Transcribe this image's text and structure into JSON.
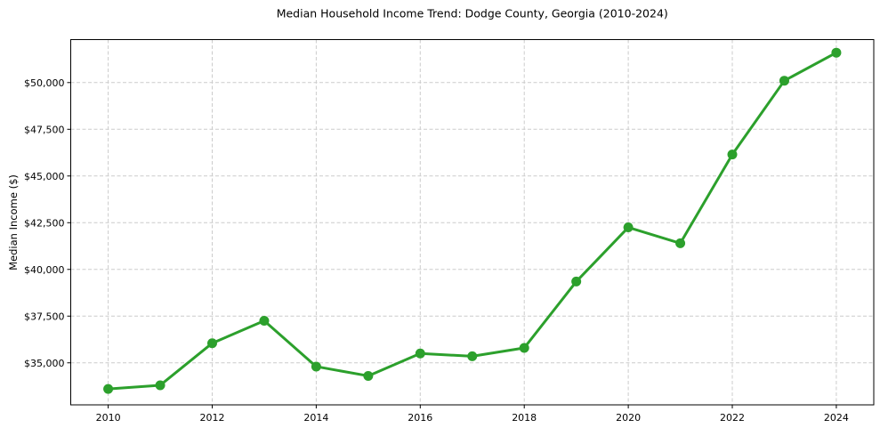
{
  "chart_data": {
    "type": "line",
    "title": "Median Household Income Trend: Dodge County, Georgia (2010-2024)",
    "xlabel": "",
    "ylabel": "Median Income ($)",
    "x": [
      2010,
      2011,
      2012,
      2013,
      2014,
      2015,
      2016,
      2017,
      2018,
      2019,
      2020,
      2021,
      2022,
      2023,
      2024
    ],
    "series": [
      {
        "name": "Median Income",
        "color": "#2ca02c",
        "values": [
          33600,
          33800,
          36050,
          37250,
          34800,
          34300,
          35500,
          35350,
          35800,
          39350,
          42250,
          41400,
          46150,
          50100,
          51600
        ]
      }
    ],
    "xticks": {
      "values": [
        2010,
        2012,
        2014,
        2016,
        2018,
        2020,
        2022,
        2024
      ],
      "labels": [
        "2010",
        "2012",
        "2014",
        "2016",
        "2018",
        "2020",
        "2022",
        "2024"
      ]
    },
    "yticks": {
      "values": [
        35000,
        37500,
        40000,
        42500,
        45000,
        47500,
        50000
      ],
      "labels": [
        "$35,000",
        "$37,500",
        "$40,000",
        "$42,500",
        "$45,000",
        "$47,500",
        "$50,000"
      ]
    },
    "xlim": [
      2009.28,
      2024.72
    ],
    "ylim": [
      32750,
      52300
    ],
    "grid": true,
    "legend_position": "none",
    "line_width": 3,
    "marker": "circle",
    "marker_radius": 5.5,
    "grid_color": "#cccccc",
    "axis_color": "#000000",
    "background_color": "#ffffff"
  }
}
